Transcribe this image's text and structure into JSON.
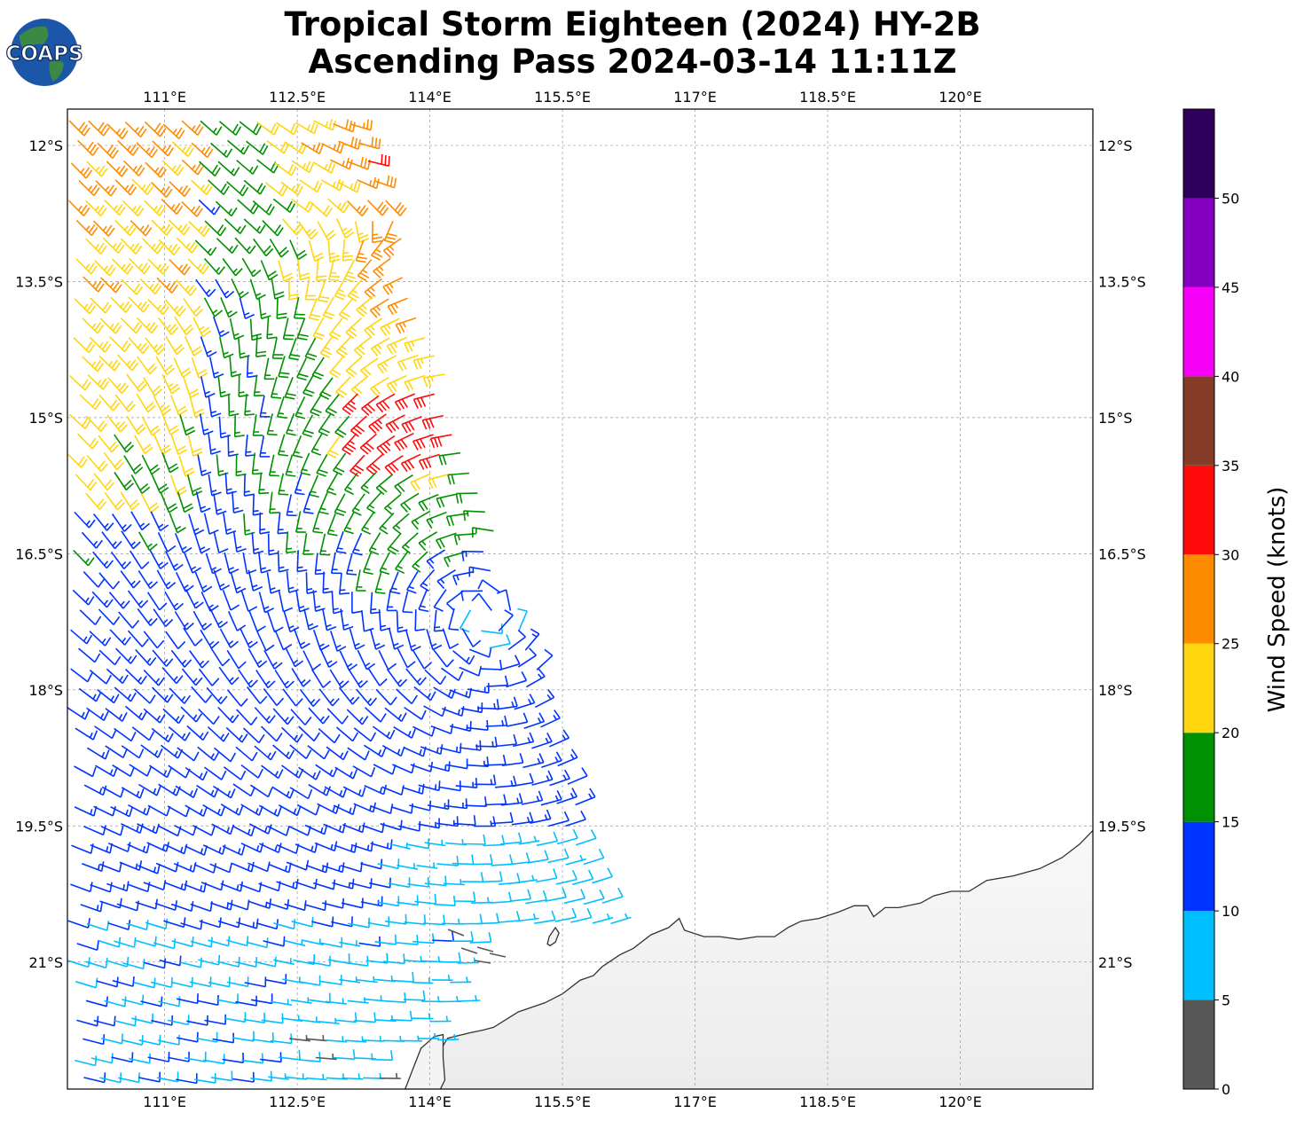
{
  "title": {
    "line1": "Tropical Storm Eighteen (2024) HY-2B",
    "line2": "Ascending Pass 2024-03-14 11:11Z"
  },
  "logo": {
    "text": "COAPS",
    "icon": "globe-logo-icon"
  },
  "map": {
    "lon_range": [
      109.9,
      121.5
    ],
    "lat_range": [
      -22.4,
      -11.6
    ],
    "lon_ticks": [
      {
        "value": 111.0,
        "label": "111°E"
      },
      {
        "value": 112.5,
        "label": "112.5°E"
      },
      {
        "value": 114.0,
        "label": "114°E"
      },
      {
        "value": 115.5,
        "label": "115.5°E"
      },
      {
        "value": 117.0,
        "label": "117°E"
      },
      {
        "value": 118.5,
        "label": "118.5°E"
      },
      {
        "value": 120.0,
        "label": "120°E"
      }
    ],
    "lat_ticks": [
      {
        "value": -12.0,
        "label": "12°S"
      },
      {
        "value": -13.5,
        "label": "13.5°S"
      },
      {
        "value": -15.0,
        "label": "15°S"
      },
      {
        "value": -16.5,
        "label": "16.5°S"
      },
      {
        "value": -18.0,
        "label": "18°S"
      },
      {
        "value": -19.5,
        "label": "19.5°S"
      },
      {
        "value": -21.0,
        "label": "21°S"
      }
    ],
    "gridlines": true,
    "coastline_color": "#333333",
    "land_color": "#f2f2f2",
    "storm_center": {
      "lon": 114.6,
      "lat": -17.2
    },
    "coastline": [
      [
        121.5,
        -19.55
      ],
      [
        121.35,
        -19.7
      ],
      [
        121.15,
        -19.85
      ],
      [
        120.9,
        -19.97
      ],
      [
        120.6,
        -20.05
      ],
      [
        120.3,
        -20.1
      ],
      [
        120.1,
        -20.22
      ],
      [
        119.9,
        -20.22
      ],
      [
        119.7,
        -20.27
      ],
      [
        119.55,
        -20.35
      ],
      [
        119.3,
        -20.4
      ],
      [
        119.15,
        -20.4
      ],
      [
        119.02,
        -20.5
      ],
      [
        118.95,
        -20.38
      ],
      [
        118.8,
        -20.38
      ],
      [
        118.62,
        -20.45
      ],
      [
        118.4,
        -20.52
      ],
      [
        118.2,
        -20.55
      ],
      [
        118.05,
        -20.62
      ],
      [
        117.9,
        -20.72
      ],
      [
        117.7,
        -20.72
      ],
      [
        117.5,
        -20.75
      ],
      [
        117.28,
        -20.72
      ],
      [
        117.1,
        -20.72
      ],
      [
        116.88,
        -20.65
      ],
      [
        116.82,
        -20.52
      ],
      [
        116.7,
        -20.62
      ],
      [
        116.5,
        -20.7
      ],
      [
        116.3,
        -20.85
      ],
      [
        116.15,
        -20.92
      ],
      [
        115.95,
        -21.05
      ],
      [
        115.85,
        -21.15
      ],
      [
        115.7,
        -21.2
      ],
      [
        115.5,
        -21.35
      ],
      [
        115.3,
        -21.45
      ],
      [
        115.0,
        -21.55
      ],
      [
        114.72,
        -21.72
      ],
      [
        114.6,
        -21.75
      ],
      [
        114.45,
        -21.78
      ],
      [
        114.2,
        -21.84
      ],
      [
        114.12,
        -21.97
      ],
      [
        114.12,
        -22.12
      ],
      [
        114.08,
        -22.25
      ],
      [
        114.04,
        -22.4
      ]
    ],
    "cape_range": [
      [
        113.72,
        -22.4
      ],
      [
        113.82,
        -22.15
      ],
      [
        113.9,
        -21.95
      ],
      [
        114.05,
        -21.82
      ],
      [
        114.15,
        -21.8
      ],
      [
        114.15,
        -22.05
      ],
      [
        114.17,
        -22.3
      ],
      [
        114.12,
        -22.4
      ]
    ],
    "island": [
      [
        115.35,
        -20.72
      ],
      [
        115.42,
        -20.62
      ],
      [
        115.46,
        -20.68
      ],
      [
        115.42,
        -20.78
      ],
      [
        115.36,
        -20.82
      ],
      [
        115.33,
        -20.8
      ]
    ]
  },
  "colorbar": {
    "label": "Wind Speed (knots)",
    "bounds": [
      0,
      5,
      10,
      15,
      20,
      25,
      30,
      35,
      40,
      45,
      50,
      55
    ],
    "tick_values": [
      0,
      5,
      10,
      15,
      20,
      25,
      30,
      35,
      40,
      45,
      50
    ],
    "colors": [
      "#585858",
      "#00bfff",
      "#0033ff",
      "#009100",
      "#ffd60f",
      "#ff8c00",
      "#ff0a0a",
      "#853d28",
      "#f700f7",
      "#8300bf",
      "#2e005c"
    ]
  }
}
